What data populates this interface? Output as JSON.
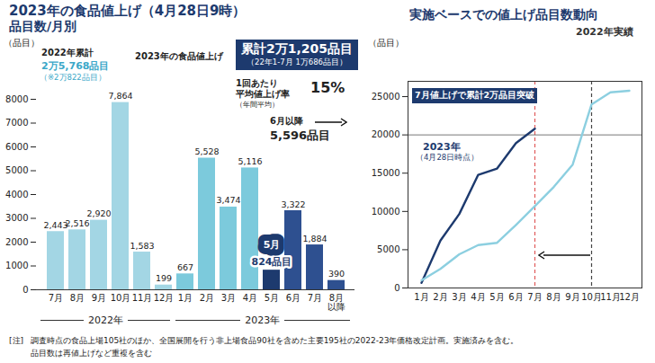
{
  "chart_data": [
    {
      "type": "bar",
      "title": "2023年の食品値上げ（4月28日9時）",
      "subtitle": "品目数/月別",
      "categories": [
        "7月",
        "8月",
        "9月",
        "10月",
        "11月",
        "12月",
        "1月",
        "2月",
        "3月",
        "4月",
        "5月",
        "6月",
        "7月",
        "8月以降"
      ],
      "values": [
        2443,
        2516,
        2920,
        7864,
        1583,
        199,
        667,
        5528,
        3474,
        5116,
        824,
        3322,
        1884,
        390
      ],
      "value_labels": [
        "2,443",
        "2,516",
        "2,920",
        "7,864",
        "1,583",
        "199",
        "667",
        "5,528",
        "3,474",
        "5,116",
        "824品目",
        "3,322",
        "1,884",
        "390"
      ],
      "colors": [
        "#a3d6e4",
        "#a3d6e4",
        "#a3d6e4",
        "#a3d6e4",
        "#a3d6e4",
        "#a3d6e4",
        "#7ccadc",
        "#7ccadc",
        "#7ccadc",
        "#7ccadc",
        "#1d3a6e",
        "#2e5090",
        "#2e5090",
        "#2e5090"
      ],
      "highlight_label": "5月",
      "groups": [
        {
          "label": "2022年",
          "count": 6
        },
        {
          "label": "2023年",
          "count": 8
        }
      ],
      "ylabel": "（品目）",
      "ylim": [
        0,
        8000
      ],
      "yticks": [
        0,
        1000,
        2000,
        3000,
        4000,
        5000,
        6000,
        7000,
        8000
      ],
      "data_labels": true,
      "annotations": {
        "cumulative_2022": {
          "title": "2022年累計",
          "value": "2万5,768品目",
          "note": "（※2万822品目）"
        },
        "cumulative_2023": {
          "heading": "2023年の食品値上げ",
          "value": "累計2万1,205品目",
          "note": "（22年1-7月 1万686品目）"
        },
        "average_rate": {
          "label": "1回あたり",
          "label2": "平均値上げ率",
          "value": "15%",
          "note": "（年間平均）"
        },
        "from_june": {
          "label": "6月以降",
          "value": "5,596品目"
        }
      }
    },
    {
      "type": "line",
      "title": "実施ベースでの値上げ品目数動向",
      "categories": [
        "1月",
        "2月",
        "3月",
        "4月",
        "5月",
        "6月",
        "7月",
        "8月",
        "9月",
        "10月",
        "11月",
        "12月"
      ],
      "series": [
        {
          "name": "2023年",
          "subname": "（4月28日時点）",
          "color": "#1d3a6e",
          "values": [
            667,
            6195,
            9669,
            14785,
            15609,
            18931,
            20815,
            null,
            null,
            null,
            null,
            null
          ]
        },
        {
          "name": "2022年実績",
          "color": "#8ccfe0",
          "values": [
            1000,
            2500,
            4400,
            5600,
            5900,
            8243,
            10686,
            13202,
            16122,
            23986,
            25569,
            25768
          ]
        }
      ],
      "ylabel": "（品目）",
      "ylim": [
        0,
        27000
      ],
      "yticks": [
        0,
        5000,
        10000,
        15000,
        20000,
        25000
      ],
      "hline": 20000,
      "vlines": [
        {
          "x": "7月",
          "color": "#e05a5a",
          "line_style": "dashed"
        },
        {
          "x": "10月",
          "color": "#444444",
          "line_style": "dashed"
        }
      ],
      "annotation": "7月値上げで累計2万品目突破"
    }
  ],
  "notes": [
    "[注]",
    "調査時点の食品上場105社のほか、全国展開を行う非上場食品90社を含めた主要195社の2022-23年価格改定計画。実施済みを含む。",
    "品目数は再値上げなど重複を含む"
  ]
}
